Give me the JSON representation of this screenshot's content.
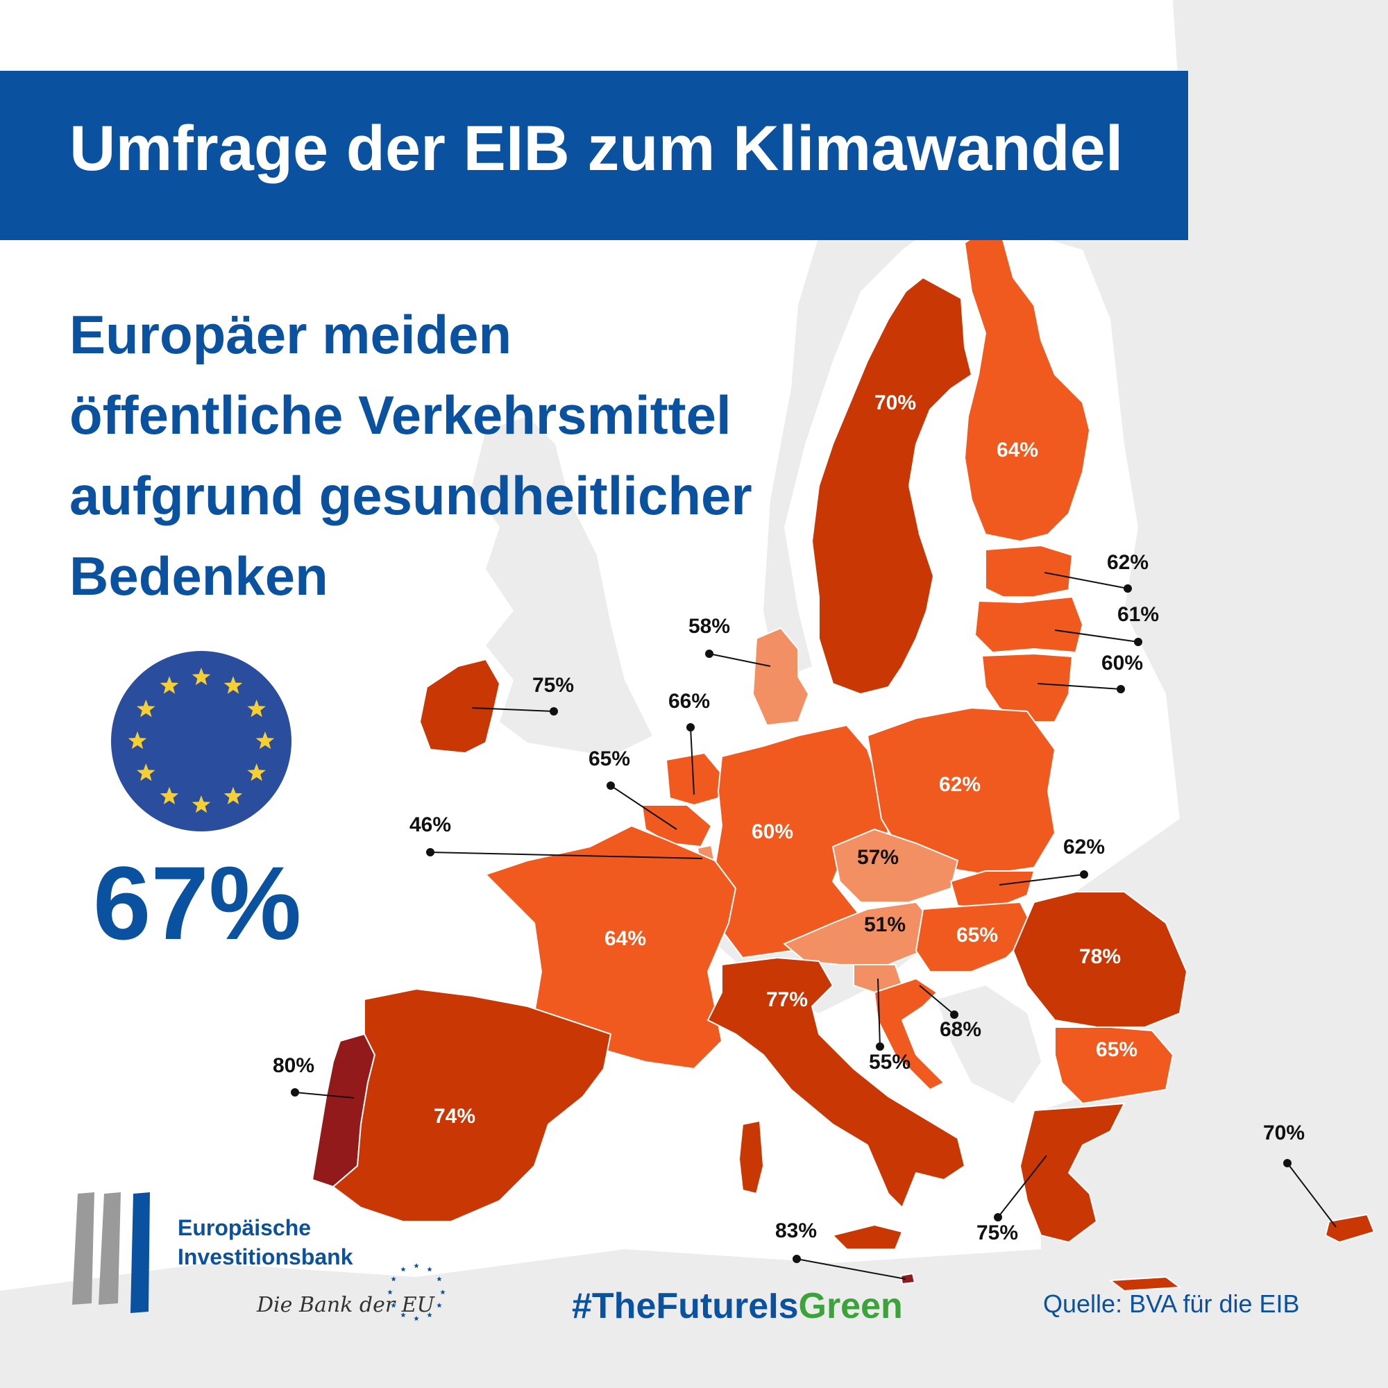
{
  "header": {
    "title": "Umfrage der EIB zum Klimawandel"
  },
  "headline": {
    "lines": [
      "Europäer meiden",
      "öffentliche Verkehrsmittel",
      "aufgrund gesundheitlicher",
      "Bedenken"
    ]
  },
  "eu_total": "67%",
  "footer": {
    "hashtag_part1": "#TheFutureIs",
    "hashtag_part2": "Green",
    "source": "Quelle: BVA für die EIB"
  },
  "logo": {
    "name_line1": "Europäische",
    "name_line2": "Investitionsbank",
    "tagline": "Die Bank der EU"
  },
  "colors": {
    "header_blue": "#0a52a0",
    "eu_flag_blue": "#2b4d9e",
    "eu_star_yellow": "#f6d032",
    "hashtag_green": "#3aa33a",
    "shade_lightest": "#f39063",
    "shade_light": "#f05a1f",
    "shade_medium": "#c93704",
    "shade_dark": "#921a1a",
    "non_eu_land": "#ececec"
  },
  "map": {
    "countries": [
      {
        "name": "Schweden",
        "value": "70%"
      },
      {
        "name": "Finnland",
        "value": "64%"
      },
      {
        "name": "Estland",
        "value": "62%"
      },
      {
        "name": "Lettland",
        "value": "61%"
      },
      {
        "name": "Litauen",
        "value": "60%"
      },
      {
        "name": "Dänemark",
        "value": "58%"
      },
      {
        "name": "Irland",
        "value": "75%"
      },
      {
        "name": "Niederlande",
        "value": "66%"
      },
      {
        "name": "Belgien",
        "value": "65%"
      },
      {
        "name": "Luxemburg",
        "value": "46%"
      },
      {
        "name": "Deutschland",
        "value": "60%"
      },
      {
        "name": "Polen",
        "value": "62%"
      },
      {
        "name": "Tschechien",
        "value": "57%"
      },
      {
        "name": "Slowakei",
        "value": "62%"
      },
      {
        "name": "Österreich",
        "value": "51%"
      },
      {
        "name": "Ungarn",
        "value": "65%"
      },
      {
        "name": "Rumänien",
        "value": "78%"
      },
      {
        "name": "Frankreich",
        "value": "64%"
      },
      {
        "name": "Italien",
        "value": "77%"
      },
      {
        "name": "Slowenien",
        "value": "55%"
      },
      {
        "name": "Kroatien",
        "value": "68%"
      },
      {
        "name": "Bulgarien",
        "value": "65%"
      },
      {
        "name": "Portugal",
        "value": "80%"
      },
      {
        "name": "Spanien",
        "value": "74%"
      },
      {
        "name": "Griechenland",
        "value": "75%"
      },
      {
        "name": "Zypern",
        "value": "70%"
      },
      {
        "name": "Malta",
        "value": "83%"
      }
    ]
  }
}
